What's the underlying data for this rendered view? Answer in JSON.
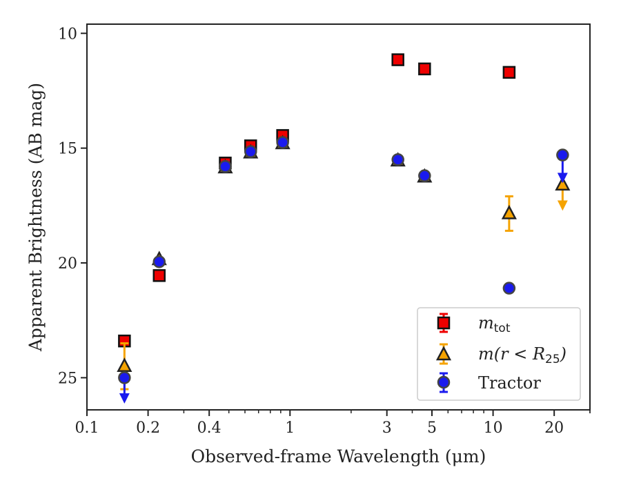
{
  "chart_data": {
    "type": "scatter",
    "xlabel": "Observed-frame Wavelength (μm)",
    "ylabel": "Apparent Brightness (AB mag)",
    "x_scale": "log",
    "xlim": [
      0.1,
      30
    ],
    "ylim": [
      26.4,
      9.6
    ],
    "y_inverted": true,
    "grid": false,
    "legend_position": "lower-right",
    "xticks": [
      {
        "value": 0.1,
        "label": "0.1"
      },
      {
        "value": 0.2,
        "label": "0.2"
      },
      {
        "value": 0.4,
        "label": "0.4"
      },
      {
        "value": 1,
        "label": "1"
      },
      {
        "value": 3,
        "label": "3"
      },
      {
        "value": 5,
        "label": "5"
      },
      {
        "value": 10,
        "label": "10"
      },
      {
        "value": 20,
        "label": "20"
      }
    ],
    "yticks": [
      {
        "value": 10,
        "label": "10"
      },
      {
        "value": 15,
        "label": "15"
      },
      {
        "value": 20,
        "label": "20"
      },
      {
        "value": 25,
        "label": "25"
      }
    ],
    "series": [
      {
        "name": "m_tot",
        "legend_label_main": "m",
        "legend_label_sub": "tot",
        "marker": "square",
        "color": "#ee0000",
        "edge_color": "#111111",
        "points": [
          {
            "x": 0.153,
            "y": 23.4
          },
          {
            "x": 0.227,
            "y": 20.55
          },
          {
            "x": 0.48,
            "y": 15.65
          },
          {
            "x": 0.64,
            "y": 14.9
          },
          {
            "x": 0.92,
            "y": 14.45
          },
          {
            "x": 3.4,
            "y": 11.15
          },
          {
            "x": 4.6,
            "y": 11.55
          },
          {
            "x": 12.0,
            "y": 11.7
          }
        ]
      },
      {
        "name": "m(r < R_25)",
        "legend_label": "m(r < R",
        "legend_label_sub": "25",
        "legend_label_end": ")",
        "marker": "triangle",
        "color": "#f5a300",
        "edge_color": "#222222",
        "points": [
          {
            "x": 0.153,
            "y": 24.5,
            "err": 1.0
          },
          {
            "x": 0.227,
            "y": 19.85
          },
          {
            "x": 0.48,
            "y": 15.85
          },
          {
            "x": 0.64,
            "y": 15.2
          },
          {
            "x": 0.92,
            "y": 14.8
          },
          {
            "x": 3.4,
            "y": 15.55
          },
          {
            "x": 4.6,
            "y": 16.25
          },
          {
            "x": 12.0,
            "y": 17.85,
            "err": 0.75
          },
          {
            "x": 22.0,
            "y": 16.6,
            "upper_limit_to": 17.5
          }
        ]
      },
      {
        "name": "Tractor",
        "marker": "circle",
        "color": "#1a1aee",
        "edge_color": "#444444",
        "points": [
          {
            "x": 0.153,
            "y": 25.0,
            "upper_limit_to": 25.9
          },
          {
            "x": 0.227,
            "y": 19.95
          },
          {
            "x": 0.48,
            "y": 15.8
          },
          {
            "x": 0.64,
            "y": 15.15
          },
          {
            "x": 0.92,
            "y": 14.75
          },
          {
            "x": 3.4,
            "y": 15.5
          },
          {
            "x": 4.6,
            "y": 16.2
          },
          {
            "x": 12.0,
            "y": 21.1
          },
          {
            "x": 22.0,
            "y": 15.3,
            "upper_limit_to": 16.3
          }
        ]
      }
    ]
  }
}
